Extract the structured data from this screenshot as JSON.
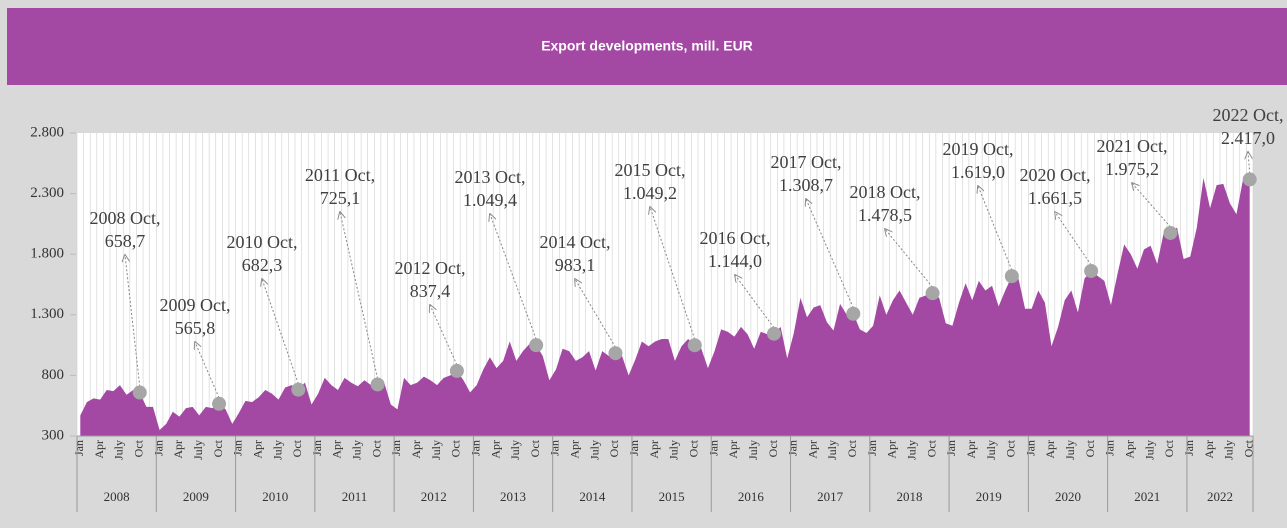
{
  "chart_data": {
    "type": "area",
    "title": "Export developments, mill. EUR",
    "color": "#a349a4",
    "categories": [
      "Jan",
      null,
      null,
      "Apr",
      null,
      null,
      "July",
      null,
      null,
      "Oct",
      null,
      null,
      "Jan",
      null,
      null,
      "Apr",
      null,
      null,
      "July",
      null,
      null,
      "Oct",
      null,
      null,
      "Jan",
      null,
      null,
      "Apr",
      null,
      null,
      "July",
      null,
      null,
      "Oct",
      null,
      null,
      "Jan",
      null,
      null,
      "Apr",
      null,
      null,
      "July",
      null,
      null,
      "Oct",
      null,
      null,
      "Jan",
      null,
      null,
      "Apr",
      null,
      null,
      "July",
      null,
      null,
      "Oct",
      null,
      null,
      "Jan",
      null,
      null,
      "Apr",
      null,
      null,
      "July",
      null,
      null,
      "Oct",
      null,
      null,
      "Jan",
      null,
      null,
      "Apr",
      null,
      null,
      "July",
      null,
      null,
      "Oct",
      null,
      null,
      "Jan",
      null,
      null,
      "Apr",
      null,
      null,
      "July",
      null,
      null,
      "Oct",
      null,
      null,
      "Jan",
      null,
      null,
      "Apr",
      null,
      null,
      "July",
      null,
      null,
      "Oct",
      null,
      null,
      "Jan",
      null,
      null,
      "Apr",
      null,
      null,
      "July",
      null,
      null,
      "Oct",
      null,
      null,
      "Jan",
      null,
      null,
      "Apr",
      null,
      null,
      "July",
      null,
      null,
      "Oct",
      null,
      null,
      "Jan",
      null,
      null,
      "Apr",
      null,
      null,
      "July",
      null,
      null,
      "Oct",
      null,
      null,
      "Jan",
      null,
      null,
      "Apr",
      null,
      null,
      "July",
      null,
      null,
      "Oct",
      null,
      null,
      "Jan",
      null,
      null,
      "Apr",
      null,
      null,
      "July",
      null,
      null,
      "Oct",
      null,
      null,
      "Jan",
      null,
      null,
      "Apr",
      null,
      null,
      "July",
      null,
      null,
      "Oct"
    ],
    "years": [
      "2008",
      "2009",
      "2010",
      "2011",
      "2012",
      "2013",
      "2014",
      "2015",
      "2016",
      "2017",
      "2018",
      "2019",
      "2020",
      "2021",
      "2022"
    ],
    "values": [
      470,
      580,
      610,
      600,
      680,
      670,
      720,
      640,
      680,
      658.7,
      540,
      540,
      350,
      400,
      500,
      460,
      530,
      540,
      470,
      540,
      530,
      565.8,
      520,
      400,
      490,
      590,
      580,
      620,
      680,
      650,
      600,
      700,
      720,
      682.3,
      740,
      560,
      650,
      780,
      720,
      680,
      780,
      740,
      710,
      760,
      720,
      725.1,
      740,
      560,
      520,
      780,
      720,
      740,
      790,
      760,
      720,
      780,
      800,
      837.4,
      760,
      660,
      720,
      850,
      950,
      860,
      920,
      1080,
      920,
      1000,
      1060,
      1049.4,
      960,
      760,
      850,
      1020,
      1000,
      920,
      950,
      1000,
      840,
      1000,
      960,
      983.1,
      960,
      800,
      930,
      1080,
      1040,
      1080,
      1100,
      1100,
      920,
      1040,
      1100,
      1049.2,
      1020,
      860,
      1000,
      1180,
      1160,
      1120,
      1200,
      1140,
      1020,
      1160,
      1140,
      1144.0,
      1200,
      940,
      1150,
      1440,
      1280,
      1360,
      1380,
      1240,
      1170,
      1390,
      1300,
      1308.7,
      1180,
      1150,
      1210,
      1460,
      1300,
      1420,
      1500,
      1400,
      1300,
      1440,
      1460,
      1478.5,
      1440,
      1230,
      1210,
      1400,
      1560,
      1420,
      1580,
      1500,
      1540,
      1370,
      1500,
      1619.0,
      1600,
      1350,
      1350,
      1500,
      1400,
      1040,
      1200,
      1420,
      1500,
      1320,
      1600,
      1661.5,
      1620,
      1580,
      1380,
      1640,
      1880,
      1800,
      1680,
      1840,
      1870,
      1720,
      1980,
      1975.2,
      2020,
      1760,
      1780,
      2020,
      2430,
      2180,
      2370,
      2380,
      2220,
      2130,
      2420,
      2417.0
    ],
    "value_labels": [
      null,
      null,
      null,
      null,
      null,
      null,
      null,
      null,
      null,
      "658,7",
      null,
      null,
      null,
      null,
      null,
      null,
      null,
      null,
      null,
      null,
      null,
      "565,8",
      null,
      null,
      null,
      null,
      null,
      null,
      null,
      null,
      null,
      null,
      null,
      "682,3",
      null,
      null,
      null,
      null,
      null,
      null,
      null,
      null,
      null,
      null,
      null,
      "725,1",
      null,
      null,
      null,
      null,
      null,
      null,
      null,
      null,
      null,
      null,
      null,
      "837,4",
      null,
      null,
      null,
      null,
      null,
      null,
      null,
      null,
      null,
      null,
      null,
      "1.049,4",
      null,
      null,
      null,
      null,
      null,
      null,
      null,
      null,
      null,
      null,
      null,
      "983,1",
      null,
      null,
      null,
      null,
      null,
      null,
      null,
      null,
      null,
      null,
      null,
      "1.049,2",
      null,
      null,
      null,
      null,
      null,
      null,
      null,
      null,
      null,
      null,
      null,
      "1.144,0",
      null,
      null,
      null,
      null,
      null,
      null,
      null,
      null,
      null,
      null,
      null,
      "1.308,7",
      null,
      null,
      null,
      null,
      null,
      null,
      null,
      null,
      null,
      null,
      null,
      "1.478,5",
      null,
      null,
      null,
      null,
      null,
      null,
      null,
      null,
      null,
      null,
      null,
      "1.619,0",
      null,
      null,
      null,
      null,
      null,
      null,
      null,
      null,
      null,
      null,
      null,
      "1.661,5",
      null,
      null,
      null,
      null,
      null,
      null,
      null,
      null,
      null,
      null,
      null,
      "1.975,2",
      null,
      null,
      null,
      null,
      null,
      null,
      null,
      null,
      null,
      null,
      null,
      "2.417,0"
    ],
    "annotations": [
      "2008 Oct,",
      "2009 Oct,",
      "2010 Oct,",
      "2011 Oct,",
      "2012 Oct,",
      "2013 Oct,",
      "2014 Oct,",
      "2015 Oct,",
      "2016 Oct,",
      "2017 Oct,",
      "2018 Oct,",
      "2019 Oct,",
      "2020 Oct,",
      "2021 Oct,",
      "2022 Oct,"
    ],
    "ylim": [
      300,
      2800
    ],
    "yticks": [
      300,
      800,
      {
        "value": 1300,
        "label": "1.300"
      },
      {
        "value": 1800,
        "label": "1.800"
      },
      {
        "value": 2300,
        "label": "2.300"
      },
      {
        "value": 2800,
        "label": "2.800"
      }
    ]
  }
}
